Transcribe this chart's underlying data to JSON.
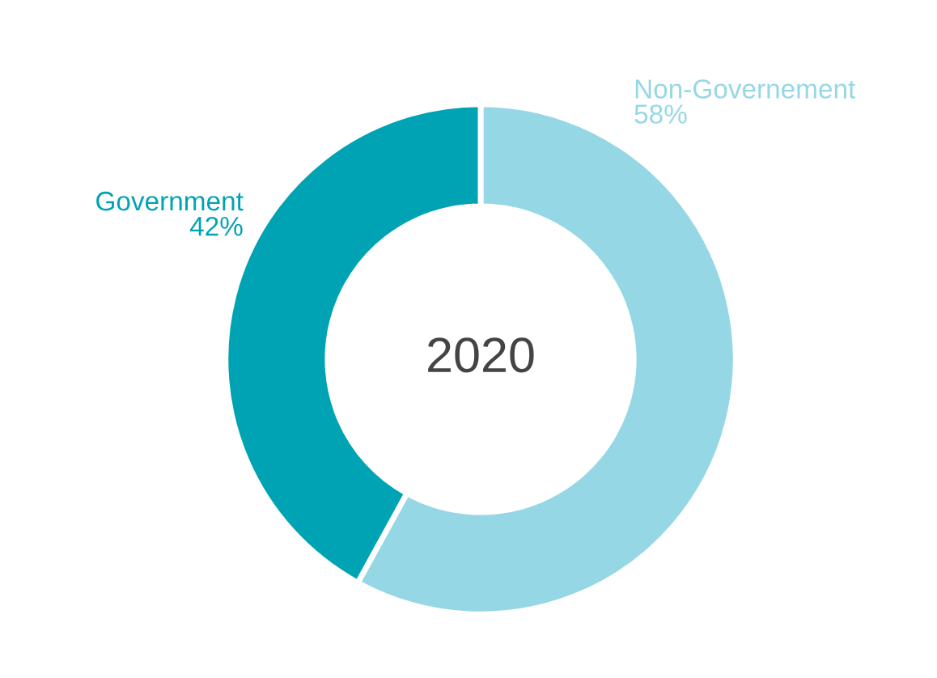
{
  "chart_data": {
    "type": "donut",
    "title": "2020",
    "categories": [
      "Non-Governement",
      "Government"
    ],
    "values": [
      58,
      42
    ],
    "value_labels": [
      "58%",
      "42%"
    ],
    "colors": [
      "#96d7e6",
      "#00a3b4"
    ],
    "legend": false
  }
}
